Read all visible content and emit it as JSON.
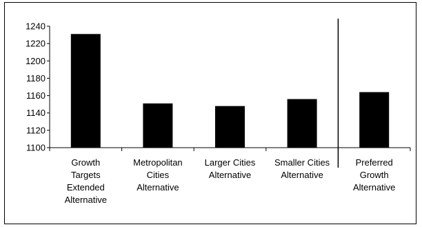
{
  "chart_data": {
    "type": "bar",
    "categories": [
      "Growth Targets Extended Alternative",
      "Metropolitan Cities Alternative",
      "Larger Cities Alternative",
      "Smaller Cities Alternative",
      "Preferred Growth Alternative"
    ],
    "category_lines": [
      [
        "Growth",
        "Targets",
        "Extended",
        "Alternative"
      ],
      [
        "Metropolitan",
        "Cities",
        "Alternative"
      ],
      [
        "Larger Cities",
        "Alternative"
      ],
      [
        "Smaller Cities",
        "Alternative"
      ],
      [
        "Preferred",
        "Growth",
        "Alternative"
      ]
    ],
    "values": [
      1231,
      1151,
      1148,
      1156,
      1164
    ],
    "title": "",
    "xlabel": "",
    "ylabel": "",
    "ylim": [
      1100,
      1240
    ],
    "yticks": [
      1100,
      1120,
      1140,
      1160,
      1180,
      1200,
      1220,
      1240
    ],
    "grid": false,
    "legend": "none",
    "separator_after_category": 4,
    "bar_color": "#000000",
    "axis_color": "#000000"
  }
}
